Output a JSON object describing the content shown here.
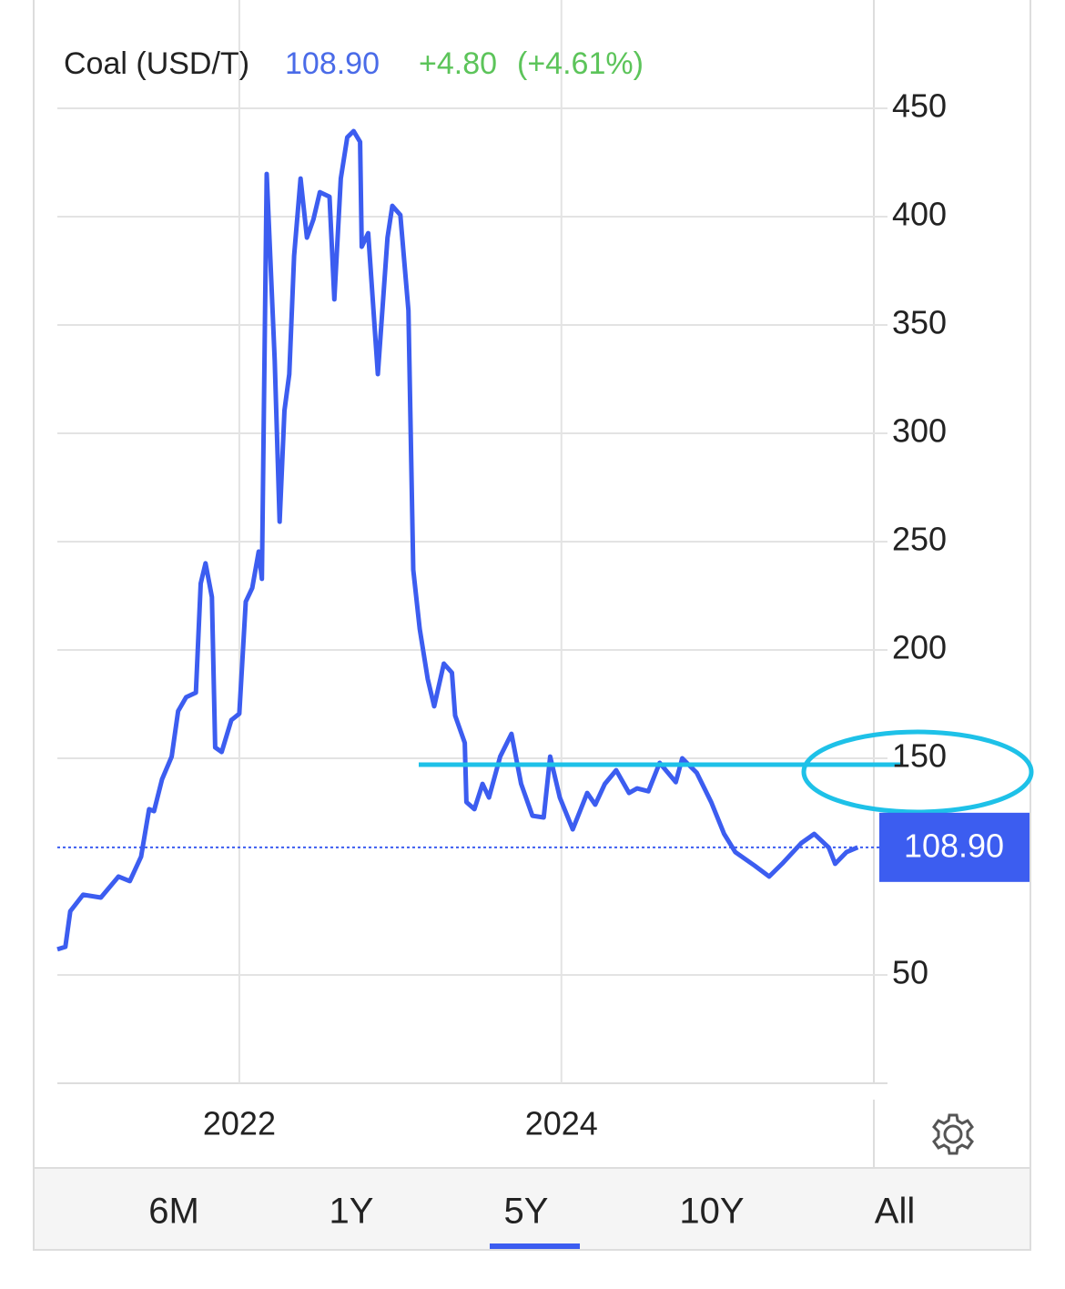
{
  "chart_data": {
    "type": "line",
    "title": "Coal (USD/T)",
    "price": {
      "value": 108.9,
      "label": "108.90"
    },
    "change": "+4.80",
    "change_pct": "(+4.61%)",
    "xlim": [
      2020.87,
      2025.94
    ],
    "xticks": [
      2022,
      2024
    ],
    "ylim": [
      0,
      500
    ],
    "yticks": [
      50,
      150,
      200,
      250,
      300,
      350,
      400,
      450
    ],
    "grid": true,
    "series": [
      {
        "color": "#3c5df0",
        "x": [
          2020.87,
          2020.92,
          2020.95,
          2021.03,
          2021.14,
          2021.25,
          2021.32,
          2021.39,
          2021.44,
          2021.47,
          2021.52,
          2021.58,
          2021.62,
          2021.67,
          2021.73,
          2021.76,
          2021.79,
          2021.83,
          2021.85,
          2021.89,
          2021.95,
          2022.0,
          2022.04,
          2022.08,
          2022.12,
          2022.14,
          2022.17,
          2022.22,
          2022.25,
          2022.28,
          2022.31,
          2022.34,
          2022.38,
          2022.42,
          2022.46,
          2022.5,
          2022.56,
          2022.59,
          2022.63,
          2022.67,
          2022.71,
          2022.75,
          2022.76,
          2022.8,
          2022.86,
          2022.92,
          2022.95,
          2023.0,
          2023.05,
          2023.08,
          2023.12,
          2023.17,
          2023.21,
          2023.27,
          2023.32,
          2023.34,
          2023.4,
          2023.41,
          2023.46,
          2023.51,
          2023.55,
          2023.62,
          2023.69,
          2023.75,
          2023.82,
          2023.89,
          2023.93,
          2023.99,
          2024.07,
          2024.16,
          2024.21,
          2024.27,
          2024.34,
          2024.42,
          2024.47,
          2024.54,
          2024.61,
          2024.71,
          2024.75,
          2024.84,
          2024.93,
          2025.01,
          2025.08,
          2025.2,
          2025.29,
          2025.37,
          2025.49,
          2025.57,
          2025.66,
          2025.7,
          2025.77,
          2025.84
        ],
        "values": [
          61.8,
          63,
          79.4,
          87,
          85.7,
          95.4,
          93.3,
          104.6,
          126.5,
          125.6,
          140.3,
          150.8,
          171.8,
          178.2,
          180.3,
          230.7,
          240,
          224.4,
          155,
          152.9,
          167.6,
          170.6,
          222.3,
          228.6,
          245.4,
          232.8,
          419.7,
          333.6,
          259.2,
          310.5,
          327.3,
          381.9,
          417.6,
          390.3,
          398.7,
          411.3,
          409.2,
          361.8,
          417.6,
          436.6,
          439.5,
          434.5,
          386.1,
          392.4,
          327.3,
          390.3,
          405,
          400.8,
          356.7,
          237,
          209.7,
          186.6,
          174,
          193.7,
          189.5,
          169.7,
          157.1,
          129.8,
          126.5,
          138.2,
          131.9,
          150.8,
          161.3,
          138.2,
          123.5,
          122.7,
          150.8,
          131.9,
          117.2,
          134,
          128.6,
          138.2,
          144.5,
          134,
          136.1,
          134.8,
          147.9,
          139,
          150,
          143.3,
          129.8,
          115.1,
          106.7,
          100.4,
          95.4,
          101.3,
          110.9,
          115.1,
          108.8,
          101.3,
          106.7,
          108.9
        ]
      }
    ]
  },
  "tabs": [
    "6M",
    "1Y",
    "5Y",
    "10Y",
    "All"
  ]
}
